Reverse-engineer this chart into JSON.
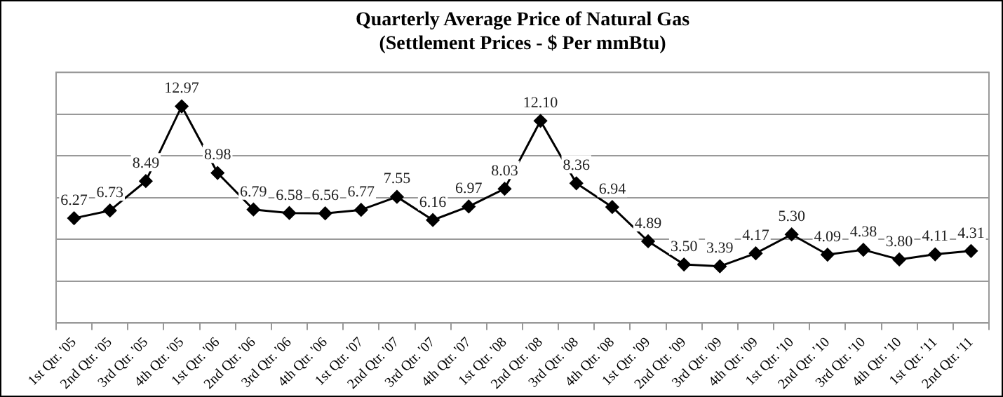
{
  "chart_data": {
    "type": "line",
    "title": "Quarterly Average Price of Natural Gas",
    "subtitle": "(Settlement Prices - $ Per mmBtu)",
    "categories": [
      "1st Qtr. '05",
      "2nd Qtr. '05",
      "3rd Qtr. '05",
      "4th Qtr. '05",
      "1st Qtr. '06",
      "2nd Qtr. '06",
      "3rd Qtr. '06",
      "4th Qtr. '06",
      "1st Qtr. '07",
      "2nd Qtr. '07",
      "3rd Qtr. '07",
      "4th Qtr. '07",
      "1st Qtr. '08",
      "2nd Qtr. '08",
      "3rd Qtr. '08",
      "4th Qtr. '08",
      "1st Qtr. '09",
      "2nd Qtr. '09",
      "3rd Qtr. '09",
      "4th Qtr. '09",
      "1st Qtr. '10",
      "2nd Qtr. '10",
      "3rd Qtr. '10",
      "4th Qtr. '10",
      "1st Qtr. '11",
      "2nd Qtr. '11"
    ],
    "series": [
      {
        "color": "#000000",
        "values": [
          6.27,
          6.73,
          8.49,
          12.97,
          8.98,
          6.79,
          6.58,
          6.56,
          6.77,
          7.55,
          6.16,
          6.97,
          8.03,
          12.1,
          8.36,
          6.94,
          4.89,
          3.5,
          3.39,
          4.17,
          5.3,
          4.09,
          4.38,
          3.8,
          4.11,
          4.31
        ],
        "value_labels": [
          "6.27",
          "6.73",
          "8.49",
          "12.97",
          "8.98",
          "6.79",
          "6.58",
          "6.56",
          "6.77",
          "7.55",
          "6.16",
          "6.97",
          "8.03",
          "12.10",
          "8.36",
          "6.94",
          "4.89",
          "3.50",
          "3.39",
          "4.17",
          "5.30",
          "4.09",
          "4.38",
          "3.80",
          "4.11",
          "4.31"
        ]
      }
    ],
    "ylim": [
      0,
      15
    ],
    "yticks": [
      {
        "value": 0,
        "label": null
      },
      {
        "value": 2.5,
        "label": null
      },
      {
        "value": 5,
        "label": null
      },
      {
        "value": 7.5,
        "label": null
      },
      {
        "value": 10,
        "label": null
      },
      {
        "value": 12.5,
        "label": null
      },
      {
        "value": 15,
        "label": null
      }
    ],
    "tick_labels": "x",
    "grid": "y",
    "legend": false,
    "marker": "diamond",
    "line_style": "solid"
  }
}
